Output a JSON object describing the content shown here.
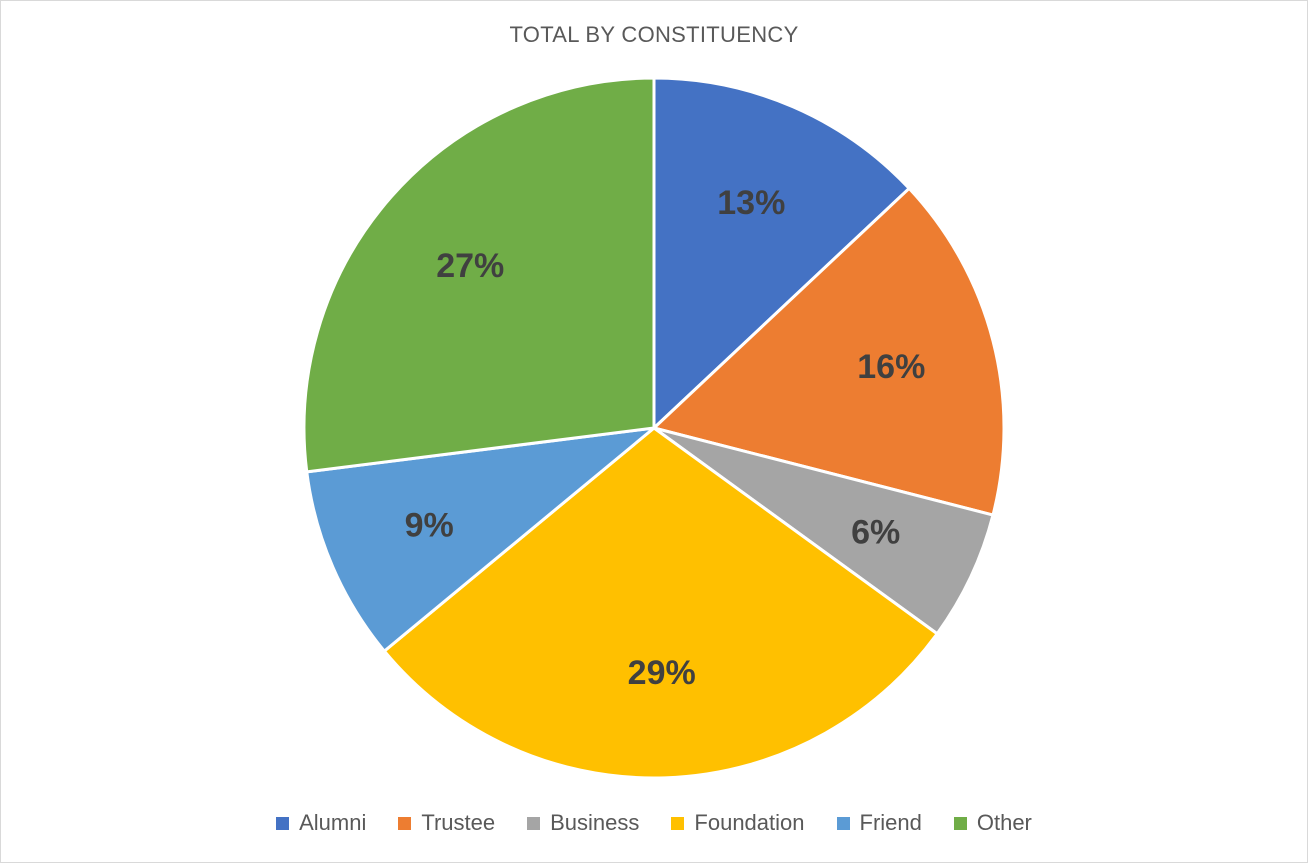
{
  "chart_data": {
    "type": "pie",
    "title": "TOTAL BY CONSTITUENCY",
    "categories": [
      "Alumni",
      "Trustee",
      "Business",
      "Foundation",
      "Friend",
      "Other"
    ],
    "values": [
      13,
      16,
      6,
      29,
      9,
      27
    ],
    "labels": [
      "13%",
      "16%",
      "6%",
      "29%",
      "9%",
      "27%"
    ],
    "colors": [
      "#4472c4",
      "#ed7d31",
      "#a5a5a5",
      "#ffc000",
      "#5b9bd5",
      "#70ad47"
    ],
    "legend_position": "bottom",
    "start_angle": "12 o'clock",
    "direction": "clockwise"
  }
}
